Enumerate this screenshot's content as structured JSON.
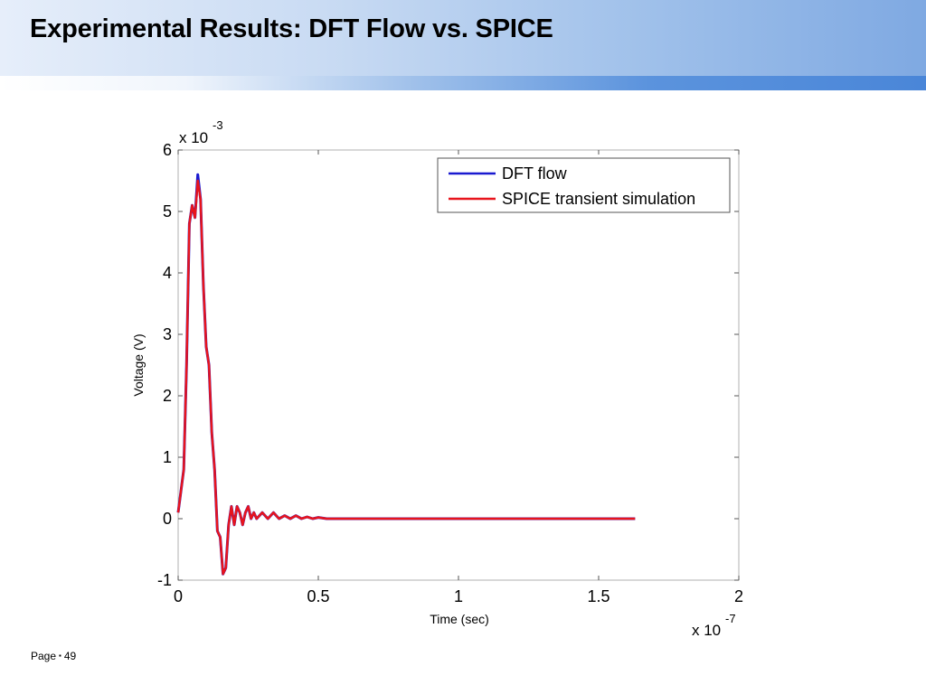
{
  "slide": {
    "title": "Experimental Results: DFT Flow vs. SPICE",
    "footer_label": "Page",
    "footer_sep": "▪",
    "page_number": "49"
  },
  "chart_data": {
    "type": "line",
    "title": "",
    "xlabel": "Time (sec)",
    "ylabel": "Voltage (V)",
    "x_multiplier": "x 10",
    "x_exponent": "-7",
    "y_multiplier": "x 10",
    "y_exponent": "-3",
    "xlim": [
      0,
      2e-07
    ],
    "ylim": [
      -0.001,
      0.006
    ],
    "x_ticks": [
      0,
      0.5,
      1,
      1.5,
      2
    ],
    "y_ticks": [
      -1,
      0,
      1,
      2,
      3,
      4,
      5,
      6
    ],
    "grid": false,
    "legend_position": "top-right",
    "series": [
      {
        "name": "DFT flow",
        "color": "#1a1ad0",
        "x": [
          0,
          2e-09,
          3e-09,
          4e-09,
          5e-09,
          6e-09,
          7e-09,
          8e-09,
          9e-09,
          1e-08,
          1.1e-08,
          1.2e-08,
          1.3e-08,
          1.4e-08,
          1.5e-08,
          1.6e-08,
          1.7e-08,
          1.8e-08,
          1.9e-08,
          2e-08,
          2.1e-08,
          2.2e-08,
          2.3e-08,
          2.4e-08,
          2.5e-08,
          2.6e-08,
          2.7e-08,
          2.8e-08,
          3e-08,
          3.2e-08,
          3.4e-08,
          3.6e-08,
          3.8e-08,
          4e-08,
          4.2e-08,
          4.4e-08,
          4.6e-08,
          4.8e-08,
          5e-08,
          5.3e-08,
          1.63e-07
        ],
        "y": [
          0.0001,
          0.0008,
          0.0025,
          0.0048,
          0.0051,
          0.0049,
          0.0056,
          0.0052,
          0.0038,
          0.0028,
          0.0025,
          0.0014,
          0.0008,
          -0.0002,
          -0.0003,
          -0.0009,
          -0.0008,
          -0.0001,
          0.0002,
          -0.0001,
          0.0002,
          0.0001,
          -0.0001,
          0.0001,
          0.0002,
          0.0,
          0.0001,
          0.0,
          0.0001,
          0.0,
          0.0001,
          0.0,
          5e-05,
          0.0,
          5e-05,
          0.0,
          3e-05,
          0.0,
          2e-05,
          0.0,
          0.0
        ]
      },
      {
        "name": "SPICE transient simulation",
        "color": "#e8141c",
        "x": [
          0,
          2e-09,
          3e-09,
          4e-09,
          5e-09,
          6e-09,
          7e-09,
          8e-09,
          9e-09,
          1e-08,
          1.1e-08,
          1.2e-08,
          1.3e-08,
          1.4e-08,
          1.5e-08,
          1.6e-08,
          1.7e-08,
          1.8e-08,
          1.9e-08,
          2e-08,
          2.1e-08,
          2.2e-08,
          2.3e-08,
          2.4e-08,
          2.5e-08,
          2.6e-08,
          2.7e-08,
          2.8e-08,
          3e-08,
          3.2e-08,
          3.4e-08,
          3.6e-08,
          3.8e-08,
          4e-08,
          4.2e-08,
          4.4e-08,
          4.6e-08,
          4.8e-08,
          5e-08,
          5.3e-08,
          1.63e-07
        ],
        "y": [
          0.0001,
          0.0008,
          0.0025,
          0.0048,
          0.0051,
          0.0049,
          0.0055,
          0.0052,
          0.0038,
          0.0028,
          0.0025,
          0.0014,
          0.0008,
          -0.0002,
          -0.0003,
          -0.0009,
          -0.0008,
          -0.0001,
          0.0002,
          -0.0001,
          0.0002,
          0.0001,
          -0.0001,
          0.0001,
          0.0002,
          0.0,
          0.0001,
          0.0,
          0.0001,
          0.0,
          0.0001,
          0.0,
          5e-05,
          0.0,
          5e-05,
          0.0,
          3e-05,
          0.0,
          2e-05,
          0.0,
          0.0
        ]
      }
    ]
  }
}
